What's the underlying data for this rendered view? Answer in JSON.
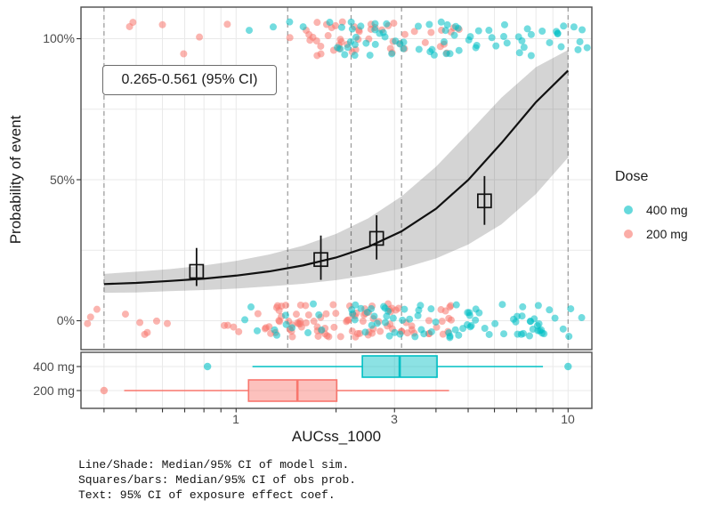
{
  "colors": {
    "dose_400": "#00BFC4",
    "dose_200": "#F8766D",
    "curve": "#111111",
    "ribbon": "rgba(0,0,0,0.17)",
    "dashed": "#999999",
    "grid": "#e9e9e9",
    "panel_border": "#4d4d4d",
    "tick_text": "#4d4d4d"
  },
  "chart_data": {
    "type": "line+scatter+boxplot",
    "x_axis": {
      "label": "AUCss_1000",
      "scale": "log10",
      "domain": [
        0.342,
        11.8
      ],
      "major_ticks": [
        1,
        3,
        10
      ],
      "major_tick_labels": [
        "1",
        "3",
        "10"
      ],
      "minor_ticks": [
        0.4,
        0.5,
        0.6,
        0.7,
        0.8,
        0.9,
        1,
        2,
        3,
        4,
        5,
        6,
        7,
        8,
        9,
        10
      ]
    },
    "y_axis": {
      "label": "Probability of event",
      "ticks_pct": [
        0,
        50,
        100
      ],
      "tick_labels": [
        "0%",
        "50%",
        "100%"
      ],
      "minor_ticks_pct": [
        25,
        75
      ],
      "grid": true
    },
    "annotation": "0.265-0.561 (95% CI)",
    "quantile_dashed_lines_x": [
      0.4,
      1.43,
      2.22,
      3.15,
      10.0
    ],
    "model_sim": {
      "x": [
        0.4,
        0.5,
        0.63,
        0.8,
        1.0,
        1.26,
        1.59,
        2.0,
        2.5,
        3.15,
        4.0,
        5.0,
        6.3,
        8.0,
        10.0
      ],
      "median": [
        0.13,
        0.134,
        0.141,
        0.149,
        0.16,
        0.175,
        0.196,
        0.224,
        0.262,
        0.317,
        0.397,
        0.499,
        0.63,
        0.775,
        0.887
      ],
      "lo": [
        0.099,
        0.1,
        0.105,
        0.109,
        0.114,
        0.122,
        0.131,
        0.144,
        0.161,
        0.185,
        0.221,
        0.27,
        0.342,
        0.449,
        0.579
      ],
      "hi": [
        0.166,
        0.174,
        0.183,
        0.196,
        0.212,
        0.235,
        0.266,
        0.308,
        0.363,
        0.441,
        0.546,
        0.665,
        0.791,
        0.899,
        0.96
      ]
    },
    "obs_prob_squares": [
      {
        "x": 0.76,
        "median": 0.175,
        "lo": 0.123,
        "hi": 0.258
      },
      {
        "x": 1.8,
        "median": 0.217,
        "lo": 0.145,
        "hi": 0.302
      },
      {
        "x": 2.65,
        "median": 0.292,
        "lo": 0.217,
        "hi": 0.374
      },
      {
        "x": 5.6,
        "median": 0.425,
        "lo": 0.34,
        "hi": 0.513
      }
    ],
    "scatter_jitter": {
      "seed": 7,
      "point_radius": 4,
      "y_jitter": 0.06,
      "clusters": [
        {
          "dose": "200 mg",
          "response": "event",
          "x_ranges": [
            [
              0.45,
              1.5,
              7
            ],
            [
              1.5,
              3.6,
              40
            ],
            [
              3.6,
              4.9,
              9
            ]
          ]
        },
        {
          "dose": "400 mg",
          "response": "event",
          "x_ranges": [
            [
              1.05,
              2.2,
              10
            ],
            [
              2.2,
              8.0,
              55
            ],
            [
              8.0,
              11.5,
              12
            ]
          ]
        },
        {
          "dose": "200 mg",
          "response": "no-event",
          "x_ranges": [
            [
              0.35,
              1.2,
              14
            ],
            [
              1.2,
              3.4,
              82
            ],
            [
              3.4,
              4.5,
              14
            ]
          ]
        },
        {
          "dose": "400 mg",
          "response": "no-event",
          "x_ranges": [
            [
              1.05,
              2.2,
              12
            ],
            [
              2.2,
              8.0,
              66
            ],
            [
              8.0,
              11.6,
              14
            ]
          ]
        }
      ]
    },
    "dose_boxplots": {
      "rows": [
        "400 mg",
        "200 mg"
      ],
      "stats": [
        {
          "group": "400 mg",
          "whisker_lo": 1.12,
          "q1": 2.4,
          "median": 3.11,
          "q3": 4.03,
          "whisker_hi": 8.4,
          "outliers": [
            0.82,
            10.0
          ]
        },
        {
          "group": "200 mg",
          "whisker_lo": 0.46,
          "q1": 1.09,
          "median": 1.53,
          "q3": 2.01,
          "whisker_hi": 4.38,
          "outliers": [
            0.4
          ]
        }
      ]
    },
    "legend": {
      "title": "Dose",
      "items": [
        {
          "label": "400 mg",
          "color": "#00BFC4"
        },
        {
          "label": "200 mg",
          "color": "#F8766D"
        }
      ]
    },
    "caption_lines": [
      "Line/Shade: Median/95% CI of model sim.",
      "Squares/bars: Median/95% CI of obs prob.",
      "Text: 95% CI of exposure effect coef."
    ]
  }
}
